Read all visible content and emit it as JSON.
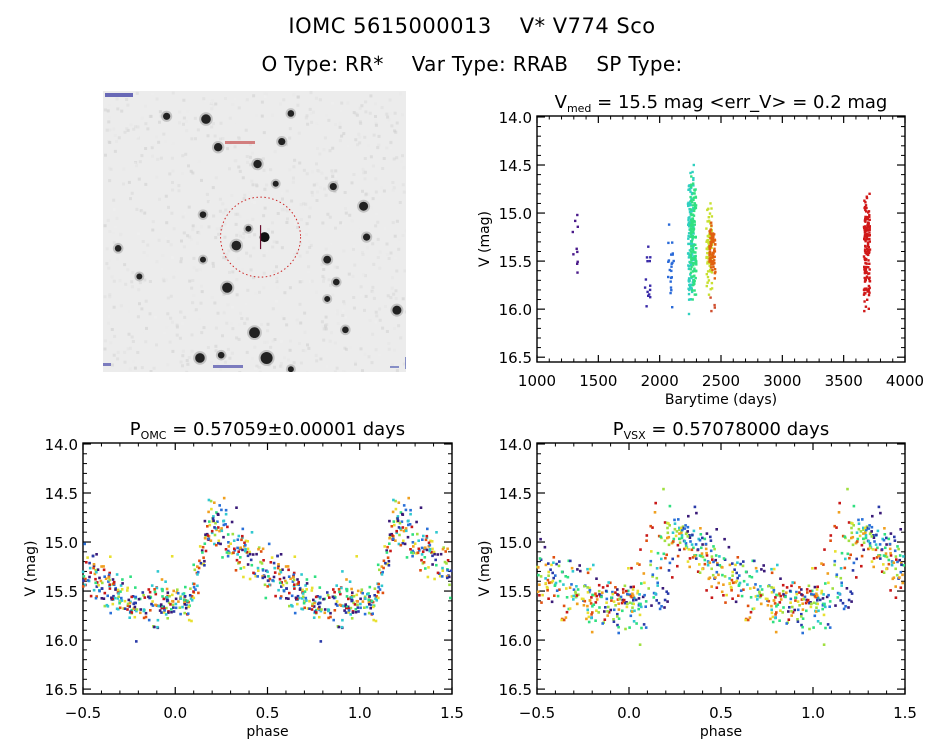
{
  "header": {
    "ids": [
      "IOMC 5615000013",
      "V* V774 Sco"
    ],
    "types": [
      "O Type: RR*",
      "Var Type: RRAB",
      "SP Type:"
    ]
  },
  "image_stamp": {
    "description": "finding chart",
    "target_circle_color": "#cc2222",
    "stars": [
      [
        0.34,
        0.1,
        1
      ],
      [
        0.59,
        0.18,
        0.6
      ],
      [
        0.62,
        0.08,
        0.5
      ],
      [
        0.38,
        0.2,
        0.8
      ],
      [
        0.51,
        0.26,
        0.8
      ],
      [
        0.76,
        0.34,
        0.6
      ],
      [
        0.33,
        0.44,
        0.5
      ],
      [
        0.86,
        0.41,
        0.9
      ],
      [
        0.05,
        0.56,
        0.5
      ],
      [
        0.44,
        0.55,
        1
      ],
      [
        0.74,
        0.6,
        0.7
      ],
      [
        0.41,
        0.7,
        1.1
      ],
      [
        0.97,
        0.78,
        0.9
      ],
      [
        0.8,
        0.85,
        0.5
      ],
      [
        0.32,
        0.95,
        1
      ],
      [
        0.48,
        0.49,
        0.4
      ],
      [
        0.57,
        0.33,
        0.4
      ],
      [
        0.87,
        0.52,
        0.6
      ],
      [
        0.33,
        0.6,
        0.4
      ],
      [
        0.77,
        0.68,
        0.5
      ],
      [
        0.74,
        0.74,
        0.4
      ],
      [
        0.5,
        0.86,
        1.2
      ],
      [
        0.54,
        0.95,
        1.4
      ],
      [
        1.0,
        1.0,
        0.0
      ],
      [
        0.21,
        0.09,
        0.6
      ],
      [
        0.12,
        0.66,
        0.4
      ],
      [
        0.39,
        0.94,
        0.5
      ],
      [
        0.62,
        0.99,
        0.4
      ]
    ],
    "target": [
      0.52,
      0.52
    ]
  },
  "chart_data": [
    {
      "type": "scatter",
      "title": "V_med = 15.5 mag <err_V> = 0.2 mag",
      "title_parts": {
        "main": "V",
        "sub": "med",
        "rest": " = 15.5 mag <err_V> = 0.2 mag"
      },
      "xlabel": "Barytime (days)",
      "ylabel": "V (mag)",
      "xlim": [
        1000,
        4000
      ],
      "ylim": [
        16.55,
        13.99
      ],
      "xticks": [
        1000,
        1500,
        2000,
        2500,
        3000,
        3500,
        4000
      ],
      "xtick_labels": [
        "1000",
        "1500",
        "2000",
        "2500",
        "3000",
        "3500",
        "4000"
      ],
      "yticks": [
        14.0,
        14.5,
        15.0,
        15.5,
        16.0,
        16.5
      ],
      "ytick_labels": [
        "14.0",
        "14.5",
        "15.0",
        "15.5",
        "16.0",
        "16.5"
      ],
      "grid": false,
      "clusters": [
        {
          "x": 1310,
          "ymin": 15.02,
          "ymax": 15.62,
          "n": 10,
          "color": "#4a1a8a"
        },
        {
          "x": 1900,
          "ymin": 15.35,
          "ymax": 15.97,
          "n": 14,
          "color": "#3a2aa8"
        },
        {
          "x": 2090,
          "ymin": 15.12,
          "ymax": 15.98,
          "n": 22,
          "color": "#2a6ad8"
        },
        {
          "x": 2255,
          "ymin": 14.5,
          "ymax": 16.05,
          "n": 120,
          "color": "#30d0c0"
        },
        {
          "x": 2275,
          "ymin": 14.62,
          "ymax": 15.9,
          "n": 120,
          "color": "#30e080"
        },
        {
          "x": 2405,
          "ymin": 14.9,
          "ymax": 15.85,
          "n": 80,
          "color": "#c8e030"
        },
        {
          "x": 2430,
          "ymin": 15.1,
          "ymax": 15.68,
          "n": 70,
          "color": "#e06010"
        },
        {
          "x": 2435,
          "ymin": 15.88,
          "ymax": 16.02,
          "n": 4,
          "color": "#d05030"
        },
        {
          "x": 3690,
          "ymin": 14.8,
          "ymax": 16.02,
          "n": 140,
          "color": "#d01818"
        }
      ]
    },
    {
      "type": "scatter",
      "title": "P_OMC = 0.57059±0.00001 days",
      "title_parts": {
        "main": "P",
        "sub": "OMC",
        "rest": " = 0.57059±0.00001 days"
      },
      "xlabel": "phase",
      "ylabel": "V (mag)",
      "xlim": [
        -0.5,
        1.5
      ],
      "ylim": [
        16.55,
        13.99
      ],
      "xticks": [
        -0.5,
        0.0,
        0.5,
        1.0,
        1.5
      ],
      "xtick_labels": [
        "−0.5",
        "0.0",
        "0.5",
        "1.0",
        "1.5"
      ],
      "yticks": [
        14.0,
        14.5,
        15.0,
        15.5,
        16.0,
        16.5
      ],
      "ytick_labels": [
        "14.0",
        "14.5",
        "15.0",
        "15.5",
        "16.0",
        "16.5"
      ],
      "grid": false,
      "lightcurve": {
        "period_days": 0.57059,
        "max_phase": 0.2,
        "max_mag": 14.75,
        "min_mag": 15.62,
        "scatter_mag": 0.17,
        "n_points": 430,
        "phase_jitter": 0.0
      }
    },
    {
      "type": "scatter",
      "title": "P_VSX = 0.57078000 days",
      "title_parts": {
        "main": "P",
        "sub": "VSX",
        "rest": " = 0.57078000 days"
      },
      "xlabel": "phase",
      "ylabel": "V (mag)",
      "xlim": [
        -0.5,
        1.5
      ],
      "ylim": [
        16.55,
        13.99
      ],
      "xticks": [
        -0.5,
        0.0,
        0.5,
        1.0,
        1.5
      ],
      "xtick_labels": [
        "−0.5",
        "0.0",
        "0.5",
        "1.0",
        "1.5"
      ],
      "yticks": [
        14.0,
        14.5,
        15.0,
        15.5,
        16.0,
        16.5
      ],
      "ytick_labels": [
        "14.0",
        "14.5",
        "15.0",
        "15.5",
        "16.0",
        "16.5"
      ],
      "grid": false,
      "lightcurve": {
        "period_days": 0.57078,
        "max_phase": 0.2,
        "max_mag": 14.8,
        "min_mag": 15.62,
        "scatter_mag": 0.2,
        "n_points": 430,
        "phase_jitter": 0.12
      }
    }
  ],
  "season_colors": [
    "#3a1a78",
    "#2a3aa8",
    "#2a70d8",
    "#30c8d0",
    "#30e080",
    "#a0e040",
    "#e8e030",
    "#f0a020",
    "#e05010",
    "#c81818"
  ]
}
